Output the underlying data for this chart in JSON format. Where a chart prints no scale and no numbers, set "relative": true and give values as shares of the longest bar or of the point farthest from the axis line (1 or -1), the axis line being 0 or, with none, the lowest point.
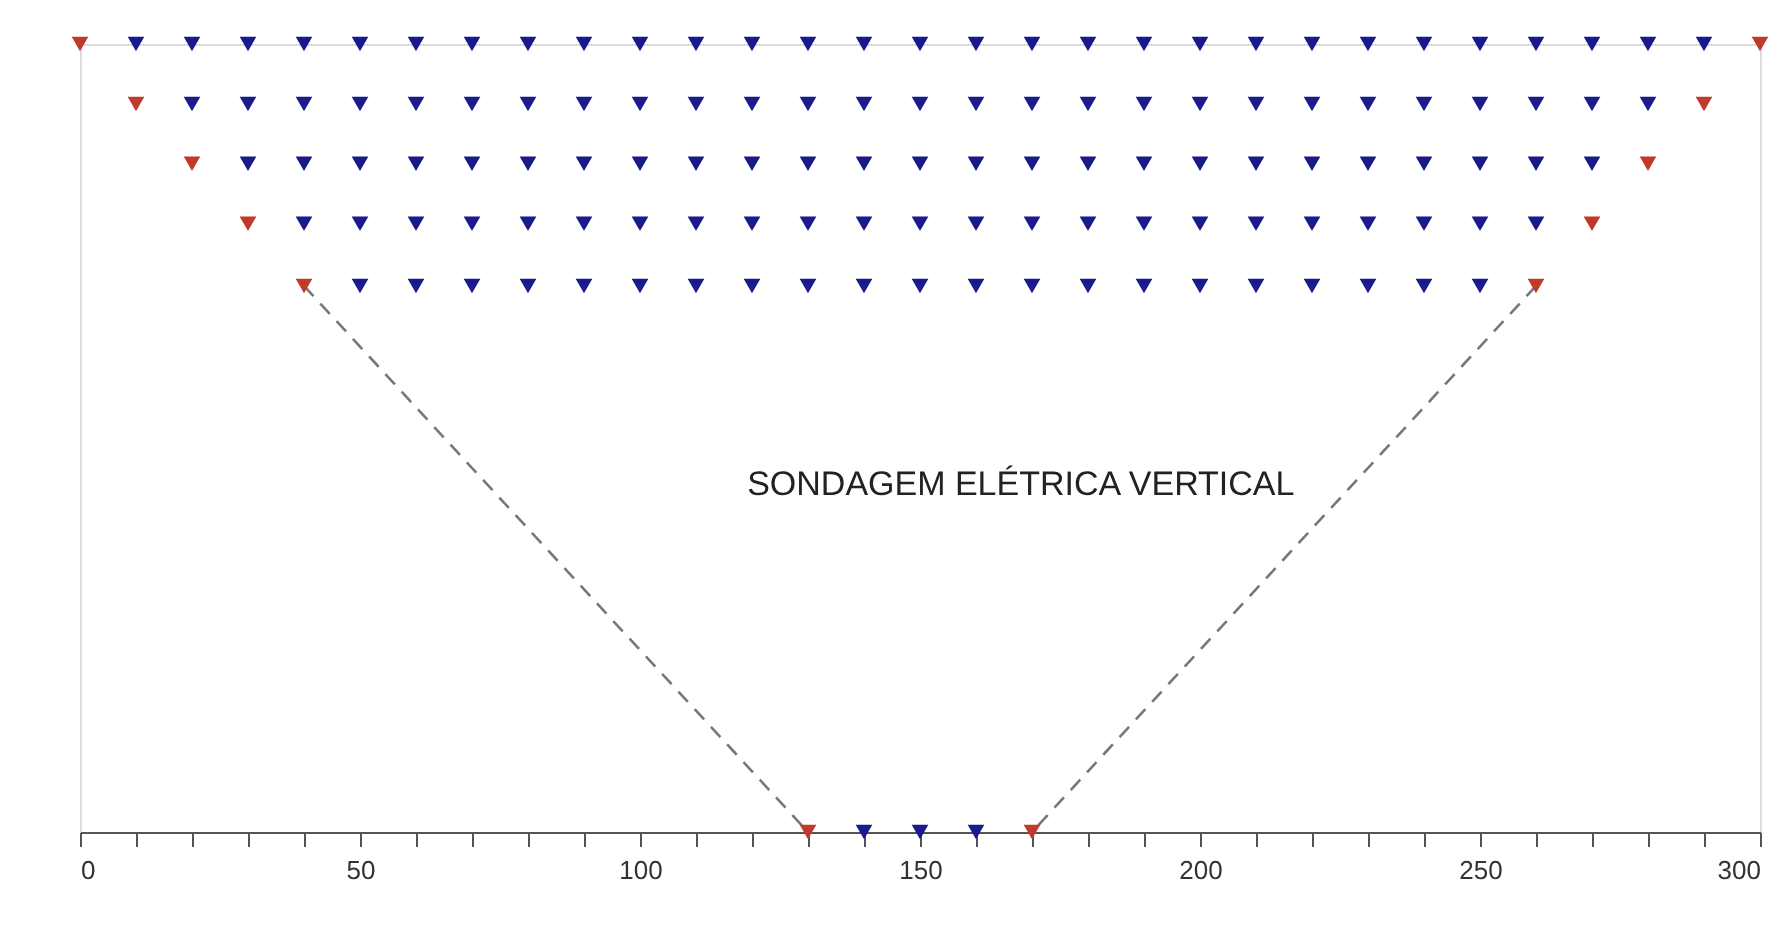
{
  "chart_data": {
    "type": "scatter",
    "relative": true,
    "marker": "triangle",
    "grid": false,
    "tick_labels": "x",
    "annotations": [
      "SONDAGEM ELÉTRICA VERTICAL"
    ],
    "xlim": [
      0,
      300
    ],
    "xticks": [
      0,
      {
        "value": 10,
        "label": null
      },
      {
        "value": 20,
        "label": null
      },
      {
        "value": 30,
        "label": null
      },
      {
        "value": 40,
        "label": null
      },
      50,
      {
        "value": 60,
        "label": null
      },
      {
        "value": 70,
        "label": null
      },
      {
        "value": 80,
        "label": null
      },
      {
        "value": 90,
        "label": null
      },
      100,
      {
        "value": 110,
        "label": null
      },
      {
        "value": 120,
        "label": null
      },
      {
        "value": 130,
        "label": null
      },
      {
        "value": 140,
        "label": null
      },
      150,
      {
        "value": 160,
        "label": null
      },
      {
        "value": 170,
        "label": null
      },
      {
        "value": 180,
        "label": null
      },
      {
        "value": 190,
        "label": null
      },
      200,
      {
        "value": 210,
        "label": null
      },
      {
        "value": 220,
        "label": null
      },
      {
        "value": 230,
        "label": null
      },
      {
        "value": 240,
        "label": null
      },
      250,
      {
        "value": 260,
        "label": null
      },
      {
        "value": 270,
        "label": null
      },
      {
        "value": 280,
        "label": null
      },
      {
        "value": 290,
        "label": null
      },
      300
    ],
    "series": [
      {
        "type": "line",
        "color": "#777777",
        "line_style": "dashed",
        "marker": "none",
        "x": [
          40,
          130
        ],
        "values": [
          0.693,
          0
        ]
      },
      {
        "type": "line",
        "color": "#777777",
        "line_style": "dashed",
        "marker": "none",
        "x": [
          260,
          170
        ],
        "values": [
          0.693,
          0
        ]
      },
      {
        "color": "#c0392b",
        "x": [
          0,
          300,
          10,
          290,
          20,
          280,
          30,
          270,
          40,
          260,
          130,
          170
        ],
        "values": [
          1,
          1,
          0.924,
          0.924,
          0.848,
          0.848,
          0.772,
          0.772,
          0.693,
          0.693,
          0,
          0
        ]
      },
      {
        "color": "#1a1a8c",
        "x": [
          10,
          20,
          30,
          40,
          50,
          60,
          70,
          80,
          90,
          100,
          110,
          120,
          130,
          140,
          150,
          160,
          170,
          180,
          190,
          200,
          210,
          220,
          230,
          240,
          250,
          260,
          270,
          280,
          290,
          20,
          30,
          40,
          50,
          60,
          70,
          80,
          90,
          100,
          110,
          120,
          130,
          140,
          150,
          160,
          170,
          180,
          190,
          200,
          210,
          220,
          230,
          240,
          250,
          260,
          270,
          280,
          30,
          40,
          50,
          60,
          70,
          80,
          90,
          100,
          110,
          120,
          130,
          140,
          150,
          160,
          170,
          180,
          190,
          200,
          210,
          220,
          230,
          240,
          250,
          260,
          270,
          40,
          50,
          60,
          70,
          80,
          90,
          100,
          110,
          120,
          130,
          140,
          150,
          160,
          170,
          180,
          190,
          200,
          210,
          220,
          230,
          240,
          250,
          260,
          50,
          60,
          70,
          80,
          90,
          100,
          110,
          120,
          130,
          140,
          150,
          160,
          170,
          180,
          190,
          200,
          210,
          220,
          230,
          240,
          250,
          140,
          150,
          160
        ],
        "values": [
          1,
          1,
          1,
          1,
          1,
          1,
          1,
          1,
          1,
          1,
          1,
          1,
          1,
          1,
          1,
          1,
          1,
          1,
          1,
          1,
          1,
          1,
          1,
          1,
          1,
          1,
          1,
          1,
          1,
          0.924,
          0.924,
          0.924,
          0.924,
          0.924,
          0.924,
          0.924,
          0.924,
          0.924,
          0.924,
          0.924,
          0.924,
          0.924,
          0.924,
          0.924,
          0.924,
          0.924,
          0.924,
          0.924,
          0.924,
          0.924,
          0.924,
          0.924,
          0.924,
          0.924,
          0.924,
          0.924,
          0.848,
          0.848,
          0.848,
          0.848,
          0.848,
          0.848,
          0.848,
          0.848,
          0.848,
          0.848,
          0.848,
          0.848,
          0.848,
          0.848,
          0.848,
          0.848,
          0.848,
          0.848,
          0.848,
          0.848,
          0.848,
          0.848,
          0.848,
          0.848,
          0.848,
          0.772,
          0.772,
          0.772,
          0.772,
          0.772,
          0.772,
          0.772,
          0.772,
          0.772,
          0.772,
          0.772,
          0.772,
          0.772,
          0.772,
          0.772,
          0.772,
          0.772,
          0.772,
          0.772,
          0.772,
          0.772,
          0.772,
          0.772,
          0.693,
          0.693,
          0.693,
          0.693,
          0.693,
          0.693,
          0.693,
          0.693,
          0.693,
          0.693,
          0.693,
          0.693,
          0.693,
          0.693,
          0.693,
          0.693,
          0.693,
          0.693,
          0.693,
          0.693,
          0.693,
          0,
          0,
          0
        ]
      }
    ]
  }
}
